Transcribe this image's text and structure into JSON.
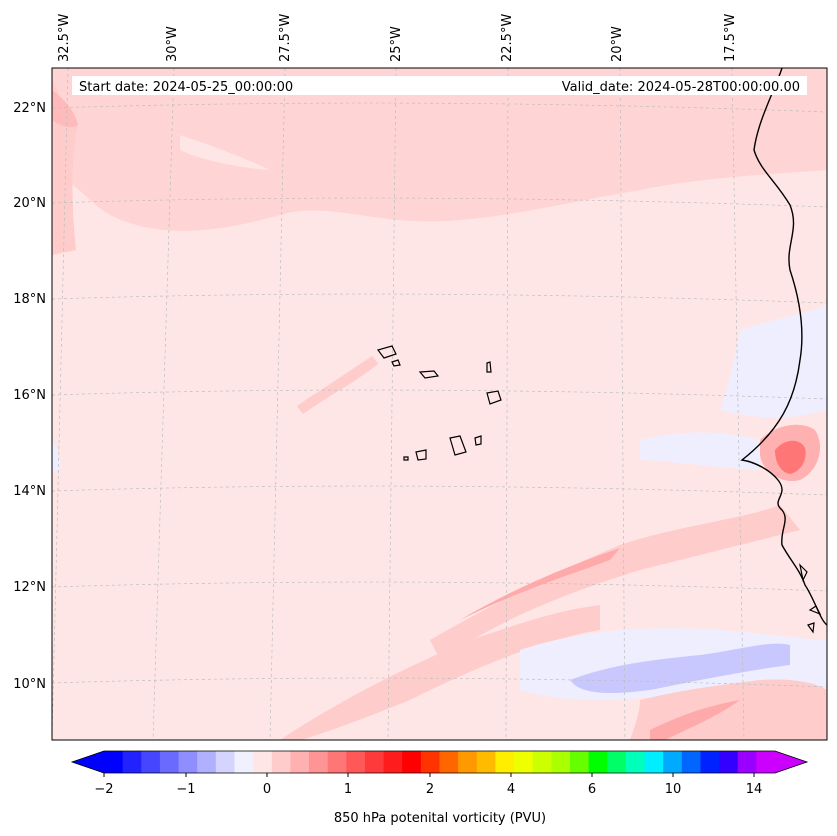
{
  "map": {
    "start_label": "Start date: 2024-05-25_00:00:00",
    "valid_label": "Valid_date: 2024-05-28T00:00:00.00",
    "lon_labels": [
      "32.5°W",
      "30°W",
      "27.5°W",
      "25°W",
      "22.5°W",
      "20°W",
      "17.5°W"
    ],
    "lat_labels": [
      "22°N",
      "20°N",
      "18°N",
      "16°N",
      "14°N",
      "12°N",
      "10°N"
    ]
  },
  "colorbar": {
    "label": "850 hPa potenital vorticity (PVU)",
    "tick_labels": [
      "−2",
      "−1",
      "0",
      "1",
      "2",
      "4",
      "6",
      "10",
      "14"
    ],
    "colors": [
      "#0000ff",
      "#2222ff",
      "#4646ff",
      "#6a6aff",
      "#8e8eff",
      "#b0b0ff",
      "#d4d4ff",
      "#f0f0ff",
      "#ffe6e6",
      "#ffcccc",
      "#ffb0b0",
      "#ff9494",
      "#ff7676",
      "#ff5858",
      "#ff3a3a",
      "#ff1c1c",
      "#ff0000",
      "#ff3300",
      "#ff6600",
      "#ff9900",
      "#ffbb00",
      "#ffee00",
      "#eeff00",
      "#ccff00",
      "#aaff00",
      "#66ff00",
      "#00ff00",
      "#00ff66",
      "#00ffbb",
      "#00eeff",
      "#00aaff",
      "#0066ff",
      "#0022ff",
      "#3300ff",
      "#9900ff",
      "#cc00ff"
    ]
  }
}
